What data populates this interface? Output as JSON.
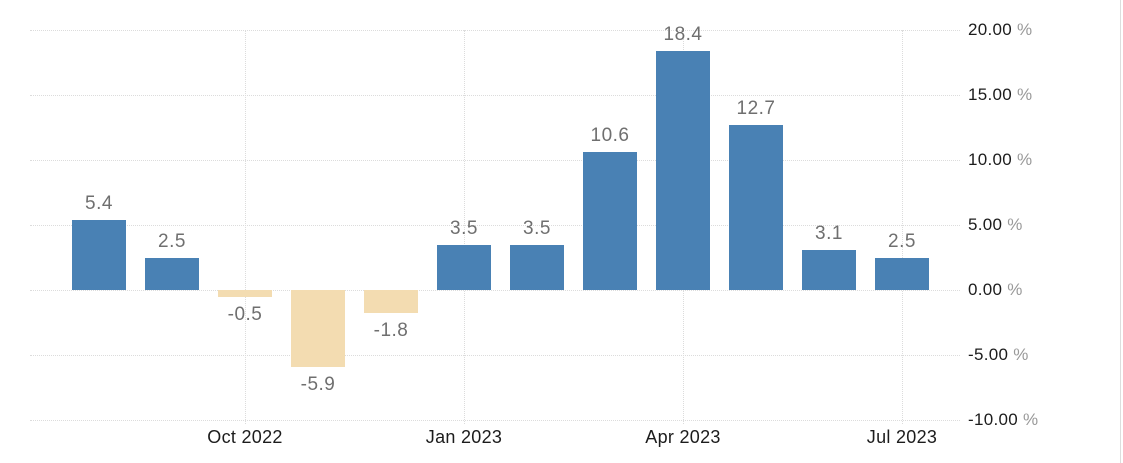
{
  "chart_data": {
    "type": "bar",
    "values": [
      5.4,
      2.5,
      -0.5,
      -5.9,
      -1.8,
      3.5,
      3.5,
      10.6,
      18.4,
      12.7,
      3.1,
      2.5
    ],
    "value_labels": [
      "5.4",
      "2.5",
      "-0.5",
      "-5.9",
      "-1.8",
      "3.5",
      "3.5",
      "10.6",
      "18.4",
      "12.7",
      "3.1",
      "2.5"
    ],
    "x_ticks": [
      {
        "label": "Oct 2022",
        "bar_index": 2
      },
      {
        "label": "Jan 2023",
        "bar_index": 5
      },
      {
        "label": "Apr 2023",
        "bar_index": 8
      },
      {
        "label": "Jul 2023",
        "bar_index": 11
      }
    ],
    "y_ticks": [
      {
        "value": 20,
        "label": "20.00"
      },
      {
        "value": 15,
        "label": "15.00"
      },
      {
        "value": 10,
        "label": "10.00"
      },
      {
        "value": 5,
        "label": "5.00"
      },
      {
        "value": 0,
        "label": "0.00"
      },
      {
        "value": -5,
        "label": "-5.00"
      },
      {
        "value": -10,
        "label": "-10.00"
      }
    ],
    "y_suffix": "%",
    "ylim": [
      -10,
      20
    ],
    "grid": "dotted",
    "legend": "none",
    "title": "",
    "xlabel": "",
    "ylabel": "",
    "colors": {
      "positive_bar": "#4981b4",
      "negative_bar": "#f3dcb1",
      "value_label": "#6f6f6f",
      "axis_text": "#1c1c1c",
      "suffix_text": "#999999",
      "gridline": "#dcdcdc",
      "right_border": "#dddddd",
      "background": "#ffffff"
    }
  }
}
